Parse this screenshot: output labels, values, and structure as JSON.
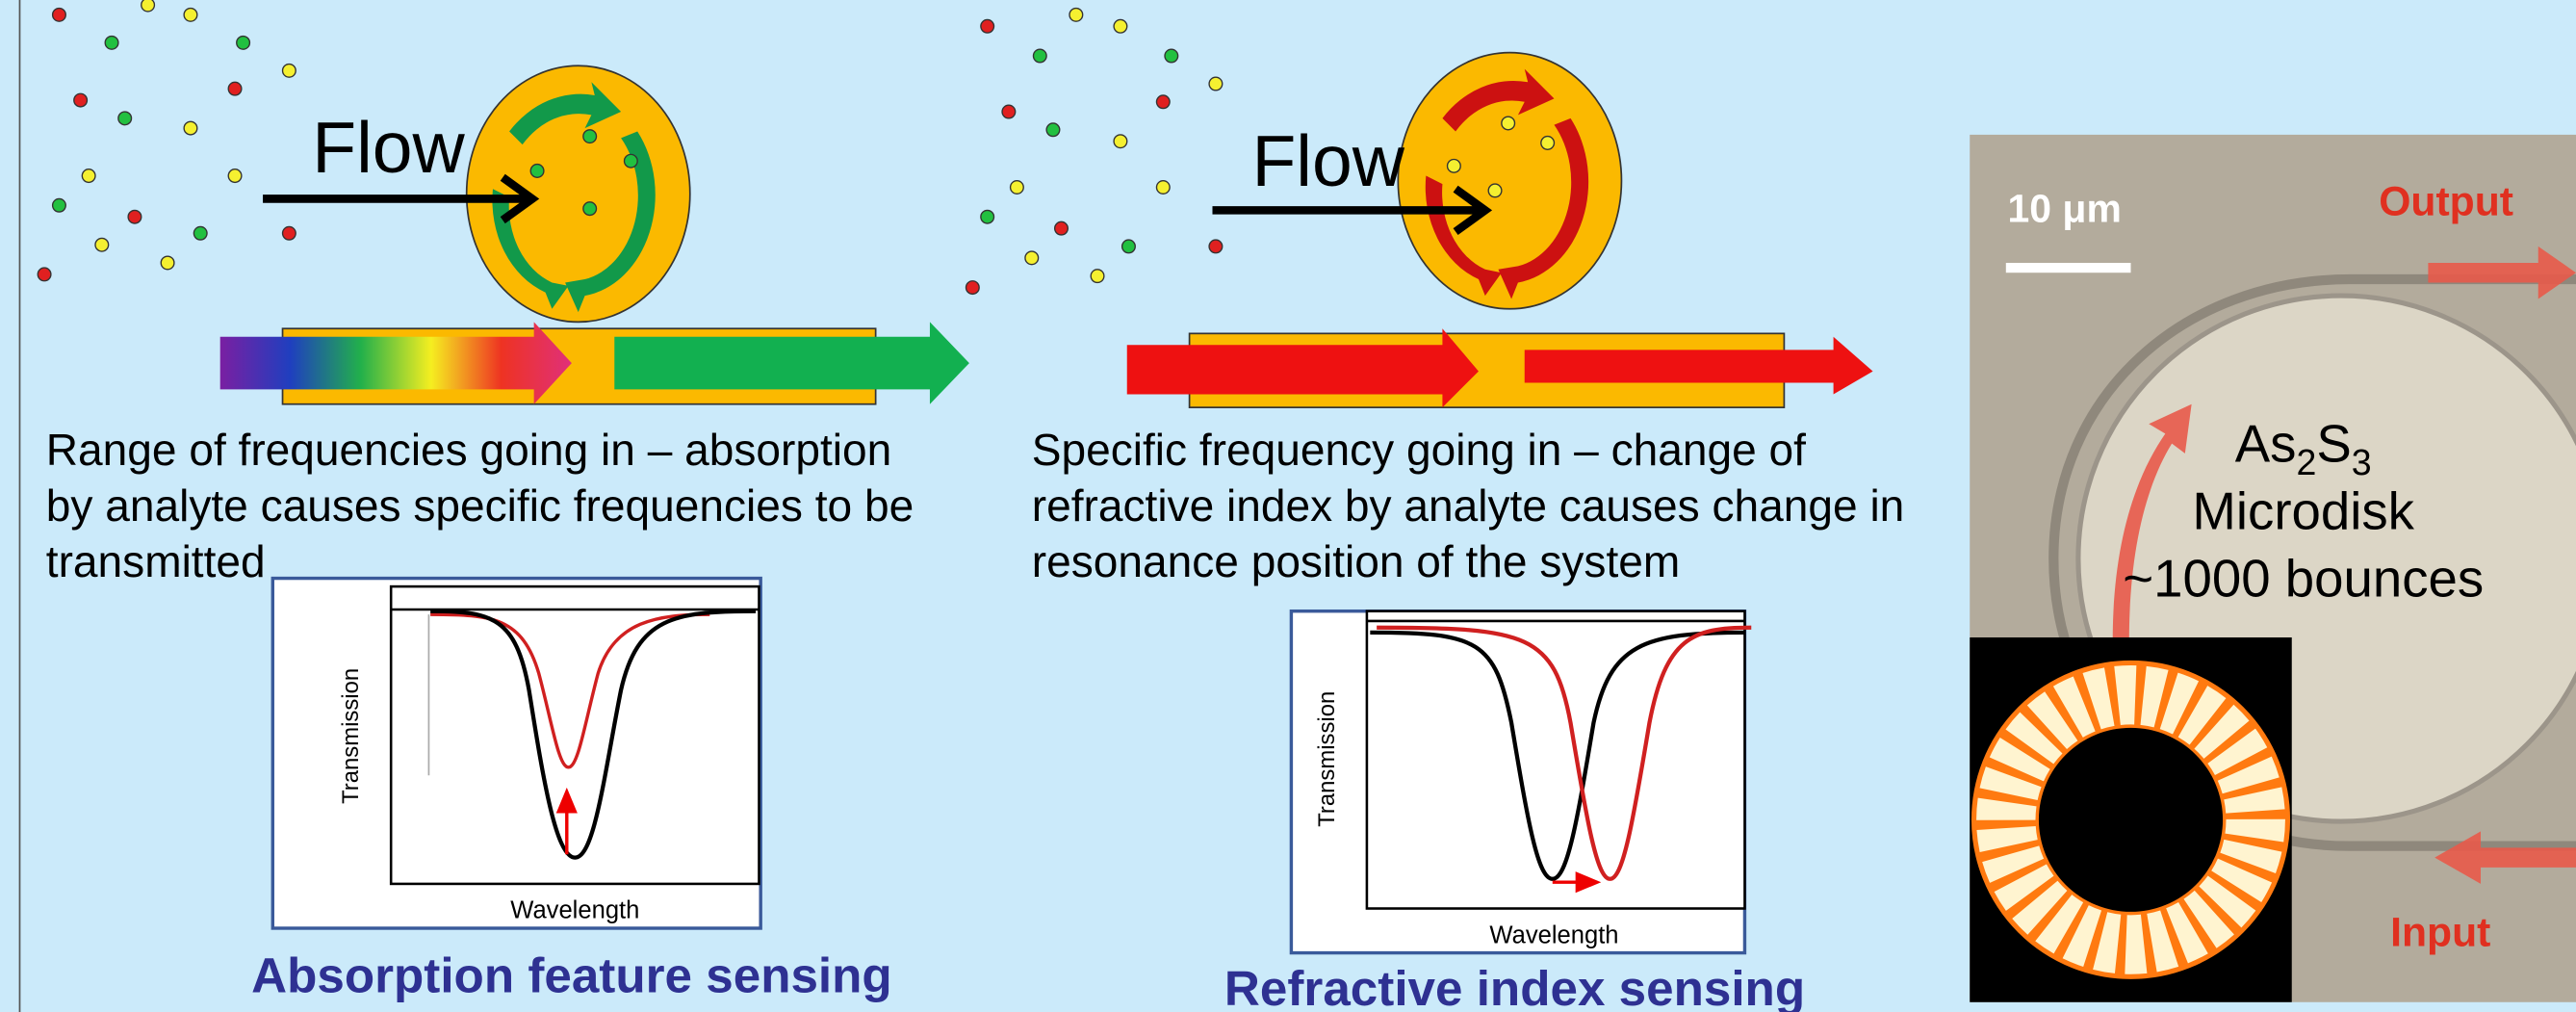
{
  "left_panel": {
    "flow_label": "Flow",
    "caption": [
      "Range of frequencies going in – absorption",
      "by analyte causes specific frequencies to be",
      "transmitted"
    ],
    "plot": {
      "y_label": "Transmission",
      "x_label": "Wavelength"
    },
    "title": "Absorption feature sensing"
  },
  "middle_panel": {
    "flow_label": "Flow",
    "caption": [
      "Specific frequency going in – change of",
      "refractive index by analyte causes change in",
      "resonance position of the system"
    ],
    "plot": {
      "y_label": "Transmission",
      "x_label": "Wavelength"
    },
    "title": "Refractive index sensing"
  },
  "photo": {
    "scale_bar": "10 μm",
    "output_label": "Output",
    "input_label": "Input",
    "material": {
      "base1": "As",
      "sub1": "2",
      "base2": "S",
      "sub2": "3"
    },
    "name": "Microdisk",
    "bounces": "~1000 bounces"
  }
}
